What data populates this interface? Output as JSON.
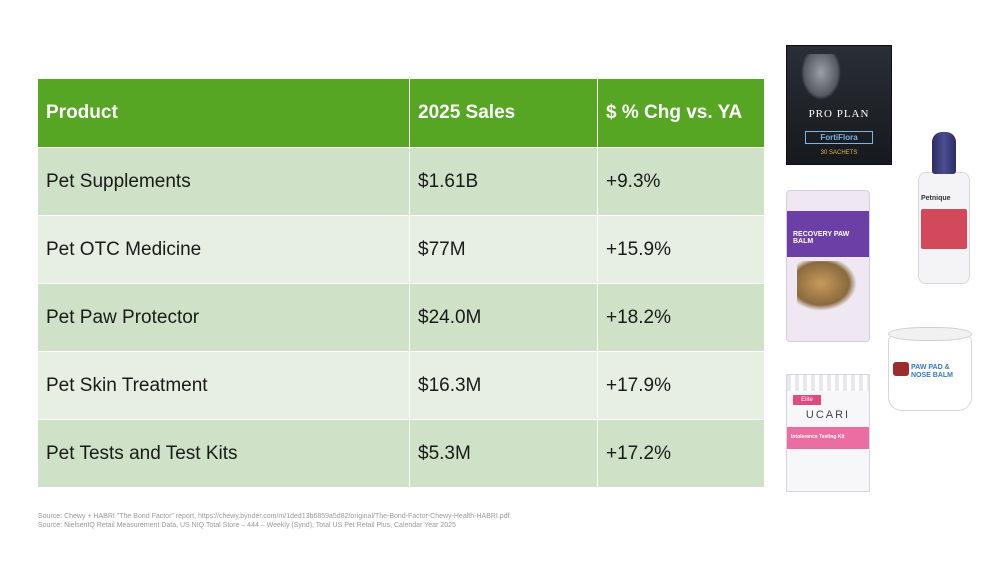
{
  "table": {
    "headers": [
      "Product",
      "2025 Sales",
      "$ % Chg vs. YA"
    ],
    "rows": [
      [
        "Pet Supplements",
        "$1.61B",
        "+9.3%"
      ],
      [
        "Pet OTC Medicine",
        "$77M",
        "+15.9%"
      ],
      [
        "Pet Paw Protector",
        "$24.0M",
        "+18.2%"
      ],
      [
        "Pet Skin Treatment",
        "$16.3M",
        "+17.9%"
      ],
      [
        "Pet Tests and Test Kits",
        "$5.3M",
        "+17.2%"
      ]
    ]
  },
  "source": {
    "line1": "Source: Chewy + HABRI \"The Bond Factor\" report, https://chewy.bynder.com/m/1ded13b6859a5d82/original/The-Bond-Factor-Chewy-Health-HABRI.pdf",
    "line2": "Source: NielsenIQ Retail Measurement Data, US NIQ Total Store – 444 – Weekly (Synd), Total US Pet Retail Plus, Calendar Year 2025"
  },
  "products": {
    "fortiflora": {
      "brand": "PRO PLAN",
      "name": "FortiFlora",
      "qty": "30 SACHETS"
    },
    "ear_drops": {
      "brand": "Petnique",
      "label": "Allergy Ear Drops"
    },
    "paw_balm": {
      "label": "RECOVERY PAW BALM"
    },
    "nose_balm": {
      "label": "PAW PAD & NOSE BALM"
    },
    "test_kit": {
      "badge": "Elite",
      "brand": "UCARI",
      "label": "Intolerance Testing Kit"
    }
  }
}
